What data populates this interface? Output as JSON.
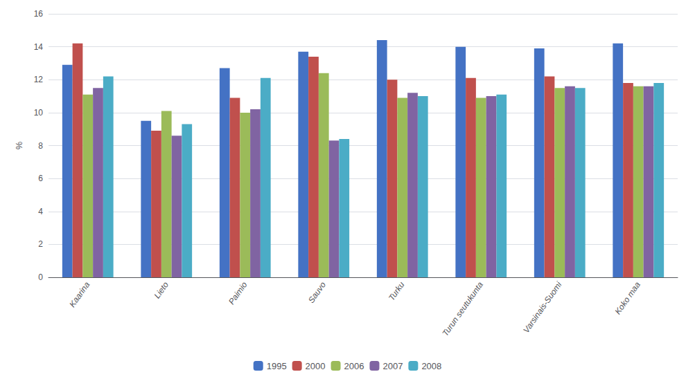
{
  "chart_data": {
    "type": "bar",
    "categories": [
      "Kaarina",
      "Lieto",
      "Paimio",
      "Sauvo",
      "Turku",
      "Turun seutukunta",
      "Varsinais-Suomi",
      "Koko maa"
    ],
    "series": [
      {
        "name": "1995",
        "color": "#4472C4",
        "values": [
          12.9,
          9.5,
          12.7,
          13.7,
          14.4,
          14.0,
          13.9,
          14.2
        ]
      },
      {
        "name": "2000",
        "color": "#C0504D",
        "values": [
          14.2,
          8.9,
          10.9,
          13.4,
          12.0,
          12.1,
          12.2,
          11.8
        ]
      },
      {
        "name": "2006",
        "color": "#9BBB59",
        "values": [
          11.1,
          10.1,
          10.0,
          12.4,
          10.9,
          10.9,
          11.5,
          11.6
        ]
      },
      {
        "name": "2007",
        "color": "#8064A2",
        "values": [
          11.5,
          8.6,
          10.2,
          8.3,
          11.2,
          11.0,
          11.6,
          11.6
        ]
      },
      {
        "name": "2008",
        "color": "#4BACC6",
        "values": [
          12.2,
          9.3,
          12.1,
          8.4,
          11.0,
          11.1,
          11.5,
          11.8
        ]
      }
    ],
    "ylabel": "%",
    "ylim": [
      0,
      16
    ],
    "yticks": [
      0,
      2,
      4,
      6,
      8,
      10,
      12,
      14,
      16
    ],
    "grid": true,
    "legend": "bottom"
  }
}
